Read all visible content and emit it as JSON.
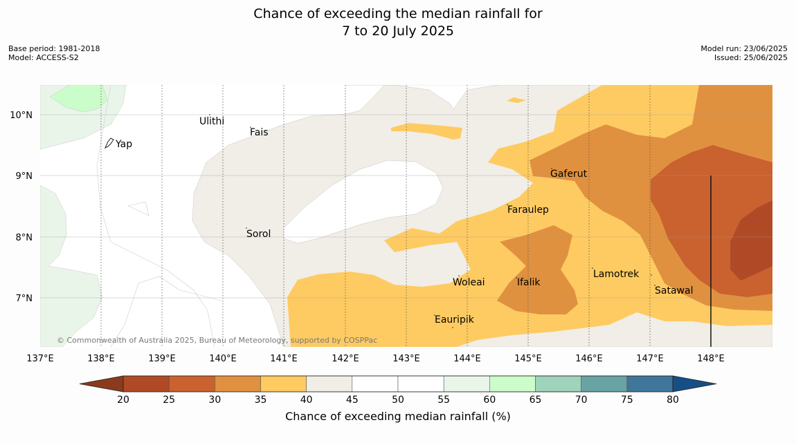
{
  "title": {
    "line1": "Chance of exceeding the median rainfall for",
    "line2": "7 to 20 July 2025"
  },
  "meta": {
    "base_period": "Base period: 1981-2018",
    "model": "Model: ACCESS-S2",
    "model_run": "Model run: 23/06/2025",
    "issued": "Issued: 25/06/2025"
  },
  "map": {
    "longitude_labels": [
      "137°E",
      "138°E",
      "139°E",
      "140°E",
      "141°E",
      "142°E",
      "143°E",
      "144°E",
      "145°E",
      "146°E",
      "147°E",
      "148°E"
    ],
    "latitude_labels": [
      "10°N",
      "9°N",
      "8°N",
      "7°N"
    ],
    "places": [
      "Ulithi",
      "Fais",
      "Yap",
      "Gaferut",
      "Faraulep",
      "Sorol",
      "Woleai",
      "Ifalik",
      "Lamotrek",
      "Satawal",
      "Eauripik"
    ],
    "copyright": "© Commonwealth of Australia 2025, Bureau of Meteorology, supported by COSPPac"
  },
  "colorbar": {
    "ticks": [
      "20",
      "25",
      "30",
      "35",
      "40",
      "45",
      "50",
      "55",
      "60",
      "65",
      "70",
      "75",
      "80"
    ],
    "colors": [
      "#8b3a1c",
      "#b04a26",
      "#c9622f",
      "#e0913f",
      "#fecb62",
      "#f1ede7",
      "#ffffff",
      "#ffffff",
      "#eaf5ea",
      "#cbfdcb",
      "#9fd3bc",
      "#6aa3a3",
      "#40769a",
      "#164f86"
    ],
    "label": "Chance of exceeding median rainfall (%)"
  }
}
